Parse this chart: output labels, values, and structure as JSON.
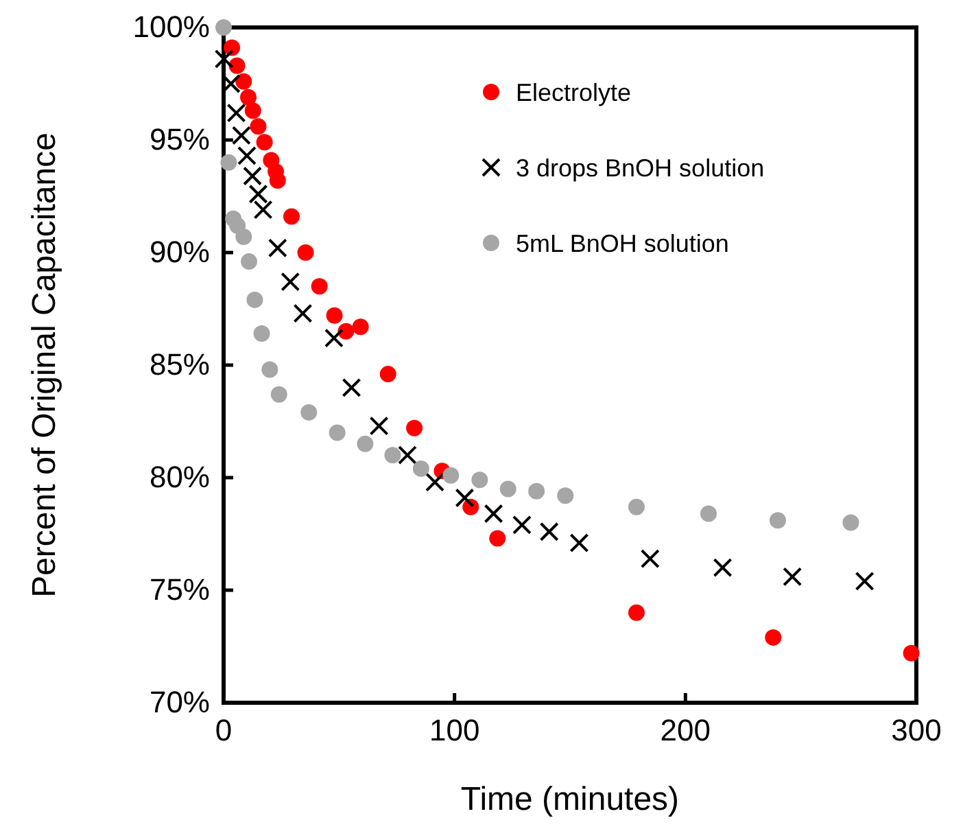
{
  "chart_data": {
    "type": "scatter",
    "xlabel": "Time (minutes)",
    "ylabel": "Percent of Original Capacitance",
    "xlim": [
      0,
      300
    ],
    "xticks": [
      0,
      100,
      200,
      300
    ],
    "ylim": [
      70,
      100
    ],
    "yticks": [
      {
        "value": 70,
        "label": "70%"
      },
      {
        "value": 75,
        "label": "75%"
      },
      {
        "value": 80,
        "label": "80%"
      },
      {
        "value": 85,
        "label": "85%"
      },
      {
        "value": 90,
        "label": "90%"
      },
      {
        "value": 95,
        "label": "95%"
      },
      {
        "value": 100,
        "label": "100%"
      }
    ],
    "grid": false,
    "legend": "top right",
    "series": [
      {
        "name": "Electrolyte",
        "color": "#ff0000",
        "marker": "circle",
        "x": [
          3.6,
          5.8,
          8.7,
          10.7,
          12.7,
          15,
          17.7,
          20.6,
          22.6,
          23.4,
          29.4,
          35.5,
          41.5,
          48,
          53,
          59.3,
          71.2,
          82.6,
          94.6,
          107,
          118.6,
          178.8,
          238,
          297.8
        ],
        "values": [
          99.1,
          98.3,
          97.6,
          96.9,
          96.3,
          95.6,
          94.9,
          94.1,
          93.6,
          93.2,
          91.6,
          90.0,
          88.5,
          87.2,
          86.5,
          86.7,
          84.6,
          82.2,
          80.3,
          78.7,
          77.3,
          74.0,
          72.9,
          72.2
        ]
      },
      {
        "name": "3 drops BnOH solution",
        "color": "#000000",
        "marker": "cross",
        "x": [
          0.2,
          3.2,
          5.5,
          7.7,
          10.1,
          12.5,
          15,
          17.1,
          23.4,
          28.9,
          34.3,
          47.8,
          55.4,
          67.3,
          79.6,
          91.5,
          104.4,
          116.9,
          129.2,
          141,
          154,
          184.7,
          216.1,
          246.3,
          277.6
        ],
        "values": [
          98.6,
          97.5,
          96.2,
          95.2,
          94.3,
          93.4,
          92.6,
          91.9,
          90.2,
          88.7,
          87.3,
          86.2,
          84.0,
          82.3,
          81.0,
          79.8,
          79.1,
          78.4,
          77.9,
          77.6,
          77.1,
          76.4,
          76.0,
          75.6,
          75.4
        ]
      },
      {
        "name": "5mL BnOH solution",
        "color": "#a6a6a6",
        "marker": "circle",
        "x": [
          0,
          2.2,
          4.2,
          6,
          8.7,
          11,
          13.5,
          16.5,
          20,
          24,
          36.9,
          49.2,
          61.3,
          73.2,
          85.5,
          98.4,
          110.9,
          123.2,
          135.5,
          148,
          178.8,
          210,
          240,
          271.6
        ],
        "values": [
          100,
          94.0,
          91.5,
          91.2,
          90.7,
          89.6,
          87.9,
          86.4,
          84.8,
          83.7,
          82.9,
          82.0,
          81.5,
          81.0,
          80.4,
          80.1,
          79.9,
          79.5,
          79.4,
          79.2,
          78.7,
          78.4,
          78.1,
          78.0
        ]
      }
    ]
  }
}
